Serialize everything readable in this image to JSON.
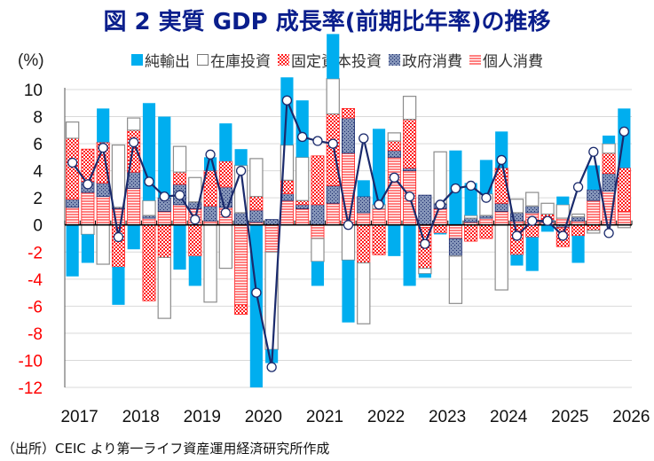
{
  "title": "図 2  実質 GDP 成長率(前期比年率)の推移",
  "source": "（出所）CEIC より第一ライフ資産運用経済研究所作成",
  "chart_data": {
    "type": "bar",
    "stacked": true,
    "title": "図 2  実質 GDP 成長率(前期比年率)の推移",
    "ylabel": "(%)",
    "ylim": [
      -12,
      10
    ],
    "yticks": [
      10,
      8,
      6,
      4,
      2,
      0,
      -2,
      -4,
      -6,
      -8,
      -10,
      -12
    ],
    "xtick_labels": [
      "2017",
      "2018",
      "2019",
      "2020",
      "2021",
      "2022",
      "2023",
      "2024",
      "2025",
      "2026"
    ],
    "legend_position": "top",
    "grid": true,
    "categories": [
      "2017Q1",
      "2017Q2",
      "2017Q3",
      "2017Q4",
      "2018Q1",
      "2018Q2",
      "2018Q3",
      "2018Q4",
      "2019Q1",
      "2019Q2",
      "2019Q3",
      "2019Q4",
      "2020Q1",
      "2020Q2",
      "2020Q3",
      "2020Q4",
      "2021Q1",
      "2021Q2",
      "2021Q3",
      "2021Q4",
      "2022Q1",
      "2022Q2",
      "2022Q3",
      "2022Q4",
      "2023Q1",
      "2023Q2",
      "2023Q3",
      "2023Q4",
      "2024Q1",
      "2024Q2",
      "2024Q3",
      "2024Q4",
      "2025Q1",
      "2025Q2",
      "2025Q3",
      "2025Q4",
      "2026Q1"
    ],
    "series": [
      {
        "name": "個人消費",
        "key": "cons",
        "color": "#ff4d4d",
        "values": [
          1.3,
          2.4,
          2.1,
          1.2,
          2.7,
          0.5,
          1.0,
          1.5,
          1.2,
          0.3,
          1.3,
          -5.9,
          0.2,
          -2.0,
          1.8,
          1.2,
          -1.0,
          1.6,
          5.3,
          0.9,
          1.2,
          5.0,
          4.0,
          -0.2,
          1.2,
          -1.0,
          0.2,
          0.5,
          1.0,
          0.3,
          0.9,
          0.2,
          0.5,
          0.3,
          1.8,
          2.5,
          1.0
        ]
      },
      {
        "name": "政府消費",
        "key": "gov",
        "color": "#6b7fa8",
        "values": [
          0.6,
          0.8,
          1.0,
          0.1,
          1.2,
          0.2,
          1.0,
          1.5,
          0.5,
          1.1,
          1.5,
          0.9,
          0.9,
          0.4,
          0.5,
          0.3,
          1.5,
          1.3,
          2.6,
          1.2,
          0.0,
          0.5,
          0.2,
          2.2,
          0.4,
          -1.3,
          0.3,
          0.2,
          0.6,
          0.6,
          0.5,
          0.2,
          -0.2,
          0.3,
          0.8,
          1.3,
          0.0
        ]
      },
      {
        "name": "固定資本投資",
        "key": "inv",
        "color": "#ff2020",
        "values": [
          4.5,
          2.4,
          3.0,
          -3.1,
          3.1,
          -5.6,
          -2.4,
          0.9,
          -2.3,
          2.6,
          1.9,
          -0.7,
          1.0,
          0.0,
          1.0,
          0.3,
          3.6,
          5.3,
          0.7,
          -2.8,
          -2.2,
          0.7,
          3.6,
          -3.0,
          -0.6,
          0.0,
          -1.2,
          -1.0,
          2.6,
          -2.2,
          -0.9,
          0.4,
          -1.4,
          -0.8,
          -0.4,
          1.5,
          3.2
        ]
      },
      {
        "name": "在庫投資",
        "key": "stock",
        "color": "#ffffff",
        "values": [
          1.2,
          -0.7,
          -2.9,
          4.6,
          0.9,
          1.1,
          -4.5,
          1.9,
          1.8,
          -5.7,
          -3.2,
          3.5,
          2.8,
          -7.2,
          2.6,
          3.2,
          -1.7,
          2.6,
          -2.6,
          -4.5,
          0.3,
          0.6,
          1.7,
          -0.4,
          3.8,
          -3.5,
          0.2,
          1.6,
          -4.8,
          1.0,
          1.0,
          0.8,
          1.0,
          0.2,
          -0.2,
          0.7,
          -0.2
        ]
      },
      {
        "name": "純輸出",
        "key": "netex",
        "color": "#00aeef",
        "values": [
          -3.8,
          -2.1,
          2.5,
          -2.8,
          -1.8,
          7.2,
          6.0,
          -3.3,
          -2.2,
          1.0,
          2.8,
          1.2,
          -12.0,
          -1.0,
          5.0,
          4.2,
          -1.8,
          3.3,
          -4.6,
          1.2,
          5.6,
          -2.3,
          -4.5,
          -0.3,
          -0.1,
          5.5,
          2.4,
          2.5,
          2.7,
          -0.8,
          -2.5,
          -0.5,
          0.6,
          -2.0,
          1.8,
          0.6,
          4.4
        ]
      }
    ],
    "total": {
      "name": "実質GDP成長率",
      "color": "#1a2a6c",
      "values": [
        4.6,
        3.0,
        5.7,
        -0.9,
        6.1,
        3.2,
        2.1,
        2.2,
        0.4,
        5.2,
        0.9,
        4.0,
        -5.0,
        -10.5,
        9.2,
        6.5,
        6.2,
        6.0,
        0.0,
        6.4,
        1.5,
        3.5,
        2.1,
        -1.4,
        1.5,
        2.7,
        2.9,
        2.0,
        4.8,
        -0.8,
        0.3,
        0.3,
        -0.8,
        2.8,
        5.4,
        -0.6,
        6.9
      ]
    }
  },
  "legend": [
    {
      "label": "純輸出",
      "key": "netex"
    },
    {
      "label": "在庫投資",
      "key": "stock"
    },
    {
      "label": "固定資本投資",
      "key": "inv"
    },
    {
      "label": "政府消費",
      "key": "gov"
    },
    {
      "label": "個人消費",
      "key": "cons"
    }
  ]
}
